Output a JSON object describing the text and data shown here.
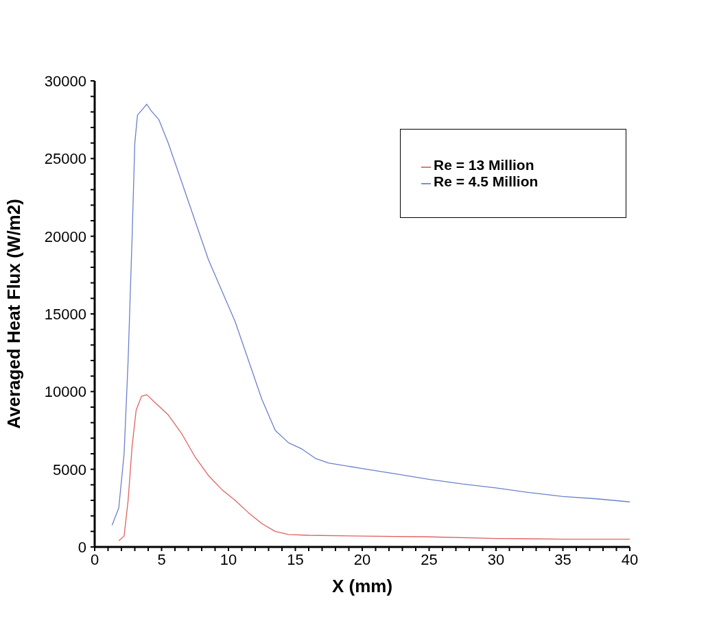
{
  "chart_data": {
    "type": "line",
    "xlabel": "X (mm)",
    "ylabel": "Averaged Heat Flux (W/m2)",
    "xlim": [
      0,
      40
    ],
    "xticks": [
      0,
      {
        "value": 1,
        "label": null
      },
      {
        "value": 2,
        "label": null
      },
      {
        "value": 3,
        "label": null
      },
      {
        "value": 4,
        "label": null
      },
      5,
      {
        "value": 6,
        "label": null
      },
      {
        "value": 7,
        "label": null
      },
      {
        "value": 8,
        "label": null
      },
      {
        "value": 9,
        "label": null
      },
      10,
      {
        "value": 11,
        "label": null
      },
      {
        "value": 12,
        "label": null
      },
      {
        "value": 13,
        "label": null
      },
      {
        "value": 14,
        "label": null
      },
      15,
      {
        "value": 16,
        "label": null
      },
      {
        "value": 17,
        "label": null
      },
      {
        "value": 18,
        "label": null
      },
      {
        "value": 19,
        "label": null
      },
      20,
      {
        "value": 21,
        "label": null
      },
      {
        "value": 22,
        "label": null
      },
      {
        "value": 23,
        "label": null
      },
      {
        "value": 24,
        "label": null
      },
      25,
      {
        "value": 26,
        "label": null
      },
      {
        "value": 27,
        "label": null
      },
      {
        "value": 28,
        "label": null
      },
      {
        "value": 29,
        "label": null
      },
      30,
      {
        "value": 31,
        "label": null
      },
      {
        "value": 32,
        "label": null
      },
      {
        "value": 33,
        "label": null
      },
      {
        "value": 34,
        "label": null
      },
      35,
      {
        "value": 36,
        "label": null
      },
      {
        "value": 37,
        "label": null
      },
      {
        "value": 38,
        "label": null
      },
      {
        "value": 39,
        "label": null
      },
      40
    ],
    "ylim": [
      0,
      30000
    ],
    "yticks": [
      0,
      {
        "value": 1000,
        "label": null
      },
      {
        "value": 2000,
        "label": null
      },
      {
        "value": 3000,
        "label": null
      },
      {
        "value": 4000,
        "label": null
      },
      5000,
      {
        "value": 6000,
        "label": null
      },
      {
        "value": 7000,
        "label": null
      },
      {
        "value": 8000,
        "label": null
      },
      {
        "value": 9000,
        "label": null
      },
      10000,
      {
        "value": 11000,
        "label": null
      },
      {
        "value": 12000,
        "label": null
      },
      {
        "value": 13000,
        "label": null
      },
      {
        "value": 14000,
        "label": null
      },
      15000,
      {
        "value": 16000,
        "label": null
      },
      {
        "value": 17000,
        "label": null
      },
      {
        "value": 18000,
        "label": null
      },
      {
        "value": 19000,
        "label": null
      },
      20000,
      {
        "value": 21000,
        "label": null
      },
      {
        "value": 22000,
        "label": null
      },
      {
        "value": 23000,
        "label": null
      },
      {
        "value": 24000,
        "label": null
      },
      25000,
      {
        "value": 26000,
        "label": null
      },
      {
        "value": 27000,
        "label": null
      },
      {
        "value": 28000,
        "label": null
      },
      {
        "value": 29000,
        "label": null
      },
      30000
    ],
    "grid": false,
    "legend": "top right",
    "marker": "none",
    "line_style": "solid",
    "series": [
      {
        "name": "Re = 13 Million",
        "color": "#e06060",
        "x": [
          1.8,
          2.2,
          2.5,
          2.8,
          3.1,
          3.5,
          3.9,
          4.5,
          5.5,
          6.5,
          7.5,
          8.5,
          9.5,
          10.5,
          11.5,
          12.5,
          13.5,
          14.5,
          16,
          20,
          25,
          30,
          35,
          40
        ],
        "values": [
          400,
          700,
          3000,
          6500,
          8800,
          9700,
          9800,
          9300,
          8500,
          7300,
          5800,
          4600,
          3700,
          3000,
          2200,
          1500,
          1000,
          800,
          750,
          700,
          650,
          550,
          500,
          500
        ]
      },
      {
        "name": "Re = 4.5 Million",
        "color": "#6a7fcc",
        "x": [
          1.3,
          1.8,
          2.2,
          2.5,
          2.8,
          3.0,
          3.2,
          3.6,
          3.9,
          4.2,
          4.8,
          5.5,
          6.5,
          7.5,
          8.5,
          9.5,
          10.5,
          11.5,
          12.5,
          13.5,
          14.5,
          15.5,
          16.5,
          17.5,
          20,
          22.5,
          25,
          27.5,
          30,
          32.5,
          35,
          37.5,
          40
        ],
        "values": [
          1400,
          2500,
          6000,
          12000,
          20000,
          26000,
          27800,
          28200,
          28500,
          28100,
          27500,
          26000,
          23500,
          21000,
          18500,
          16500,
          14500,
          12000,
          9500,
          7500,
          6700,
          6300,
          5700,
          5400,
          5050,
          4700,
          4350,
          4050,
          3800,
          3500,
          3250,
          3100,
          2900
        ]
      }
    ]
  }
}
